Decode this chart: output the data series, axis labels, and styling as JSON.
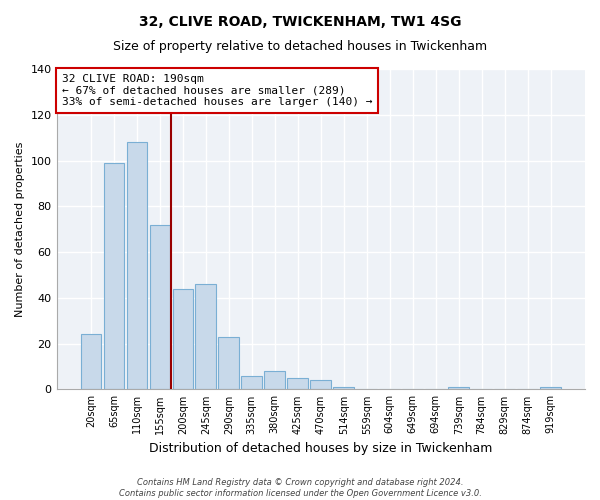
{
  "title": "32, CLIVE ROAD, TWICKENHAM, TW1 4SG",
  "subtitle": "Size of property relative to detached houses in Twickenham",
  "xlabel": "Distribution of detached houses by size in Twickenham",
  "ylabel": "Number of detached properties",
  "bar_labels": [
    "20sqm",
    "65sqm",
    "110sqm",
    "155sqm",
    "200sqm",
    "245sqm",
    "290sqm",
    "335sqm",
    "380sqm",
    "425sqm",
    "470sqm",
    "514sqm",
    "559sqm",
    "604sqm",
    "649sqm",
    "694sqm",
    "739sqm",
    "784sqm",
    "829sqm",
    "874sqm",
    "919sqm"
  ],
  "bar_values": [
    24,
    99,
    108,
    72,
    44,
    46,
    23,
    6,
    8,
    5,
    4,
    1,
    0,
    0,
    0,
    0,
    1,
    0,
    0,
    0,
    1
  ],
  "bar_color": "#c8d9ea",
  "bar_edge_color": "#7aafd4",
  "vline_color": "#990000",
  "annotation_line1": "32 CLIVE ROAD: 190sqm",
  "annotation_line2": "← 67% of detached houses are smaller (289)",
  "annotation_line3": "33% of semi-detached houses are larger (140) →",
  "annotation_box_color": "#ffffff",
  "annotation_box_edge": "#cc0000",
  "ylim": [
    0,
    140
  ],
  "yticks": [
    0,
    20,
    40,
    60,
    80,
    100,
    120,
    140
  ],
  "footer1": "Contains HM Land Registry data © Crown copyright and database right 2024.",
  "footer2": "Contains public sector information licensed under the Open Government Licence v3.0.",
  "bg_color": "#ffffff",
  "plot_bg_color": "#eef2f7",
  "grid_color": "#ffffff",
  "title_fontsize": 10,
  "subtitle_fontsize": 9
}
